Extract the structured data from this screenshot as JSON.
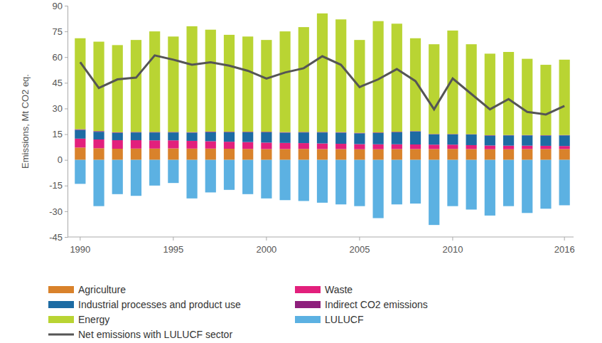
{
  "chart_data": {
    "type": "bar",
    "stacked": true,
    "y_label": "Emissions, Mt CO2 eq.",
    "categories": [
      "1990",
      null,
      null,
      null,
      null,
      "1995",
      null,
      null,
      null,
      null,
      "2000",
      null,
      null,
      null,
      null,
      "2005",
      null,
      null,
      null,
      null,
      "2010",
      null,
      null,
      null,
      null,
      null,
      "2016"
    ],
    "ylim": [
      -45,
      90
    ],
    "yticks": [
      -45,
      -30,
      -15,
      0,
      15,
      30,
      45,
      60,
      75,
      90
    ],
    "grid": false,
    "legend": "bottom",
    "series": [
      {
        "name": "Agriculture",
        "type": "bar",
        "color": "#d9822b",
        "values": [
          7.2,
          6.8,
          6.5,
          6.6,
          6.6,
          6.7,
          6.6,
          6.6,
          6.5,
          6.4,
          6.3,
          6.3,
          6.4,
          6.3,
          6.3,
          6.2,
          6.2,
          6.3,
          6.3,
          6.3,
          6.4,
          6.3,
          6.2,
          6.2,
          6.3,
          6.3,
          6.3
        ]
      },
      {
        "name": "Waste",
        "type": "bar",
        "color": "#e2207c",
        "values": [
          5.2,
          5.1,
          5.0,
          4.9,
          4.8,
          4.7,
          4.5,
          4.3,
          4.1,
          4.0,
          3.8,
          3.6,
          3.4,
          3.3,
          3.1,
          3.0,
          2.9,
          2.8,
          2.7,
          2.6,
          2.5,
          2.3,
          2.2,
          2.1,
          2.0,
          1.9,
          1.8
        ]
      },
      {
        "name": "Industrial processes and product use",
        "type": "bar",
        "color": "#1d6ba3",
        "values": [
          5.1,
          4.5,
          4.3,
          4.5,
          4.6,
          4.6,
          4.8,
          5.3,
          5.5,
          5.7,
          6.0,
          6.0,
          6.2,
          6.4,
          6.5,
          6.3,
          6.6,
          7.0,
          7.6,
          6.0,
          6.0,
          6.2,
          5.8,
          6.0,
          6.0,
          6.0,
          6.2
        ]
      },
      {
        "name": "Indirect CO2 emissions",
        "type": "bar",
        "color": "#8e1f7c",
        "values": [
          0.4,
          0.4,
          0.3,
          0.3,
          0.3,
          0.3,
          0.3,
          0.3,
          0.3,
          0.3,
          0.3,
          0.3,
          0.3,
          0.3,
          0.3,
          0.3,
          0.3,
          0.3,
          0.2,
          0.2,
          0.2,
          0.2,
          0.2,
          0.2,
          0.2,
          0.2,
          0.2
        ]
      },
      {
        "name": "Energy",
        "type": "bar",
        "color": "#b9d433",
        "values": [
          53.1,
          52.2,
          50.9,
          53.7,
          58.7,
          55.7,
          61.8,
          59.5,
          56.6,
          55.6,
          53.6,
          58.8,
          61.2,
          69.2,
          65.8,
          54.2,
          65.0,
          63.1,
          54.2,
          52.4,
          60.4,
          52.5,
          47.6,
          48.5,
          44.5,
          41.1,
          44.0
        ]
      },
      {
        "name": "LULUCF",
        "type": "bar",
        "color": "#5cb1e2",
        "values": [
          -14,
          -27,
          -20,
          -21,
          -15,
          -13.5,
          -22.5,
          -19,
          -17.5,
          -20,
          -22.5,
          -23.5,
          -24,
          -25,
          -26,
          -27,
          -34,
          -26,
          -25.5,
          -38,
          -27,
          -29,
          -32.5,
          -27,
          -31,
          -28.5,
          -26.5
        ]
      },
      {
        "name": "Net emissions with LULUCF sector",
        "type": "line",
        "color": "#555555",
        "values": [
          57,
          42,
          47,
          48,
          61,
          58.5,
          55.5,
          57,
          55,
          52,
          47.5,
          51,
          53.5,
          60.5,
          55.5,
          42.5,
          47,
          53,
          46,
          29.5,
          47.5,
          38.5,
          29.5,
          35.5,
          28,
          26.5,
          31.5
        ]
      }
    ]
  }
}
